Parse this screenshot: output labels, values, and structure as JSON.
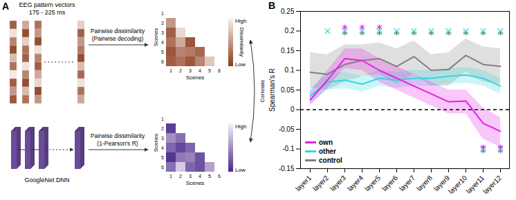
{
  "panel_labels": [
    "A",
    "B"
  ],
  "diagram": {
    "eeg": {
      "title": "EEG pattern vectors",
      "subtitle": "175 - 225 ms",
      "colors": [
        "#8b3a1d",
        "#fbf3ee"
      ],
      "vectors": [
        [
          0.2,
          0.9,
          0.4,
          0.1,
          0.7,
          0.3,
          0.95,
          0.2,
          0.5,
          0.15
        ],
        [
          0.6,
          0.1,
          0.8,
          0.3,
          0.2,
          0.9,
          0.4,
          0.1,
          0.7,
          0.3
        ],
        [
          0.3,
          0.5,
          0.1,
          0.9,
          0.4,
          0.2,
          0.6,
          0.85,
          0.1,
          0.5
        ],
        [
          0.8,
          0.2,
          0.5,
          0.35,
          0.1,
          0.7,
          0.25,
          0.9,
          0.3,
          0.6
        ]
      ]
    },
    "dnn": {
      "label": "GoogleNet DNN",
      "color": "#6b4c9a"
    },
    "link_label": "Correlate",
    "matrices": [
      {
        "method": "Pairwise dissimilarity",
        "detail": "(Pairwise decoding)",
        "colorbar_label": "Dissimilarity",
        "colorbar_high": "High",
        "colorbar_low": "Low",
        "axis_label": "Scenes",
        "ticks": [
          1,
          2,
          3,
          4,
          5,
          6
        ],
        "colors": [
          "#8b3a1d",
          "#fbf3ee"
        ],
        "cells": [
          [],
          [
            0.5
          ],
          [
            0.2,
            0.85
          ],
          [
            0.3,
            0.6,
            0.15
          ],
          [
            0.15,
            0.4,
            0.35,
            0.25
          ],
          [
            0.2,
            0.3,
            0.15,
            0.4,
            0.75
          ]
        ]
      },
      {
        "method": "Pairwise dissimilarity",
        "detail": "(1-Pearson's R)",
        "colorbar_high": "High",
        "colorbar_low": "Low",
        "axis_label": "Scenes",
        "ticks": [
          1,
          2,
          3,
          4,
          5,
          6
        ],
        "colors": [
          "#4b2a8a",
          "#f6f2fb"
        ],
        "cells": [
          [],
          [
            0.1
          ],
          [
            0.5,
            0.35
          ],
          [
            0.3,
            0.15,
            0.3
          ],
          [
            0.05,
            0.4,
            0.45,
            0.2
          ],
          [
            0.35,
            0.8,
            0.3,
            0.2,
            0.6
          ]
        ]
      }
    ]
  },
  "chart_data": {
    "type": "line",
    "y_label": "Spearman's R",
    "categories": [
      "layer1",
      "layer2",
      "layer3",
      "layer4",
      "layer5",
      "layer6",
      "layer7",
      "layer8",
      "layer9",
      "layer10",
      "layer11",
      "layer12"
    ],
    "ylim": [
      -0.15,
      0.25
    ],
    "yticks": [
      -0.15,
      -0.1,
      -0.05,
      0,
      0.05,
      0.1,
      0.15,
      0.2,
      0.25
    ],
    "grid": false,
    "legend": "lower left",
    "reference_line": {
      "y": 0,
      "line_style": "dashed"
    },
    "series": [
      {
        "name": "control",
        "color": "#808080",
        "marker": "asterisk",
        "values": [
          0.095,
          0.09,
          0.115,
          0.125,
          0.13,
          0.11,
          0.135,
          0.1,
          0.102,
          0.138,
          0.115,
          0.11
        ],
        "lower": [
          0.055,
          0.05,
          0.07,
          0.085,
          0.09,
          0.065,
          0.09,
          0.06,
          0.06,
          0.095,
          0.07,
          0.065
        ],
        "upper": [
          0.145,
          0.14,
          0.165,
          0.165,
          0.17,
          0.155,
          0.175,
          0.14,
          0.145,
          0.18,
          0.16,
          0.155
        ],
        "significance": [
          null,
          null,
          [
            0.195
          ],
          [
            0.195
          ],
          [
            0.195
          ],
          [
            0.195
          ],
          [
            0.195
          ],
          [
            0.195
          ],
          [
            0.195
          ],
          [
            0.195
          ],
          [
            0.195,
            -0.105
          ],
          [
            0.195,
            -0.105
          ]
        ]
      },
      {
        "name": "other",
        "color": "#33d6e0",
        "marker": "times",
        "values": [
          0.035,
          0.07,
          0.075,
          0.065,
          0.08,
          0.075,
          0.08,
          0.08,
          0.085,
          0.088,
          0.08,
          0.06
        ],
        "lower": [
          0.015,
          0.05,
          0.055,
          0.045,
          0.06,
          0.055,
          0.06,
          0.06,
          0.065,
          0.068,
          0.06,
          0.04
        ],
        "upper": [
          0.055,
          0.09,
          0.095,
          0.085,
          0.1,
          0.095,
          0.1,
          0.1,
          0.105,
          0.108,
          0.1,
          0.08
        ],
        "significance": [
          null,
          [
            0.2
          ],
          [
            0.2
          ],
          [
            0.2
          ],
          [
            0.2
          ],
          [
            0.2
          ],
          [
            0.2
          ],
          [
            0.2
          ],
          [
            0.2
          ],
          [
            0.2
          ],
          [
            0.2,
            -0.1
          ],
          [
            0.2,
            -0.1
          ]
        ]
      },
      {
        "name": "own",
        "color": "#e61ee6",
        "marker": "asterisk",
        "values": [
          0.025,
          0.075,
          0.13,
          0.125,
          0.1,
          0.08,
          0.06,
          0.04,
          0.02,
          0.022,
          -0.035,
          -0.055
        ],
        "lower": [
          0.01,
          0.055,
          0.105,
          0.1,
          0.07,
          0.05,
          0.03,
          0.01,
          -0.01,
          -0.01,
          -0.075,
          -0.095
        ],
        "upper": [
          0.045,
          0.1,
          0.155,
          0.155,
          0.13,
          0.11,
          0.09,
          0.07,
          0.05,
          0.05,
          0.005,
          -0.02
        ],
        "significance": [
          null,
          null,
          [
            0.21
          ],
          [
            0.21
          ],
          [
            0.21
          ],
          null,
          null,
          null,
          null,
          null,
          [
            -0.095
          ],
          [
            -0.095
          ]
        ]
      }
    ]
  }
}
